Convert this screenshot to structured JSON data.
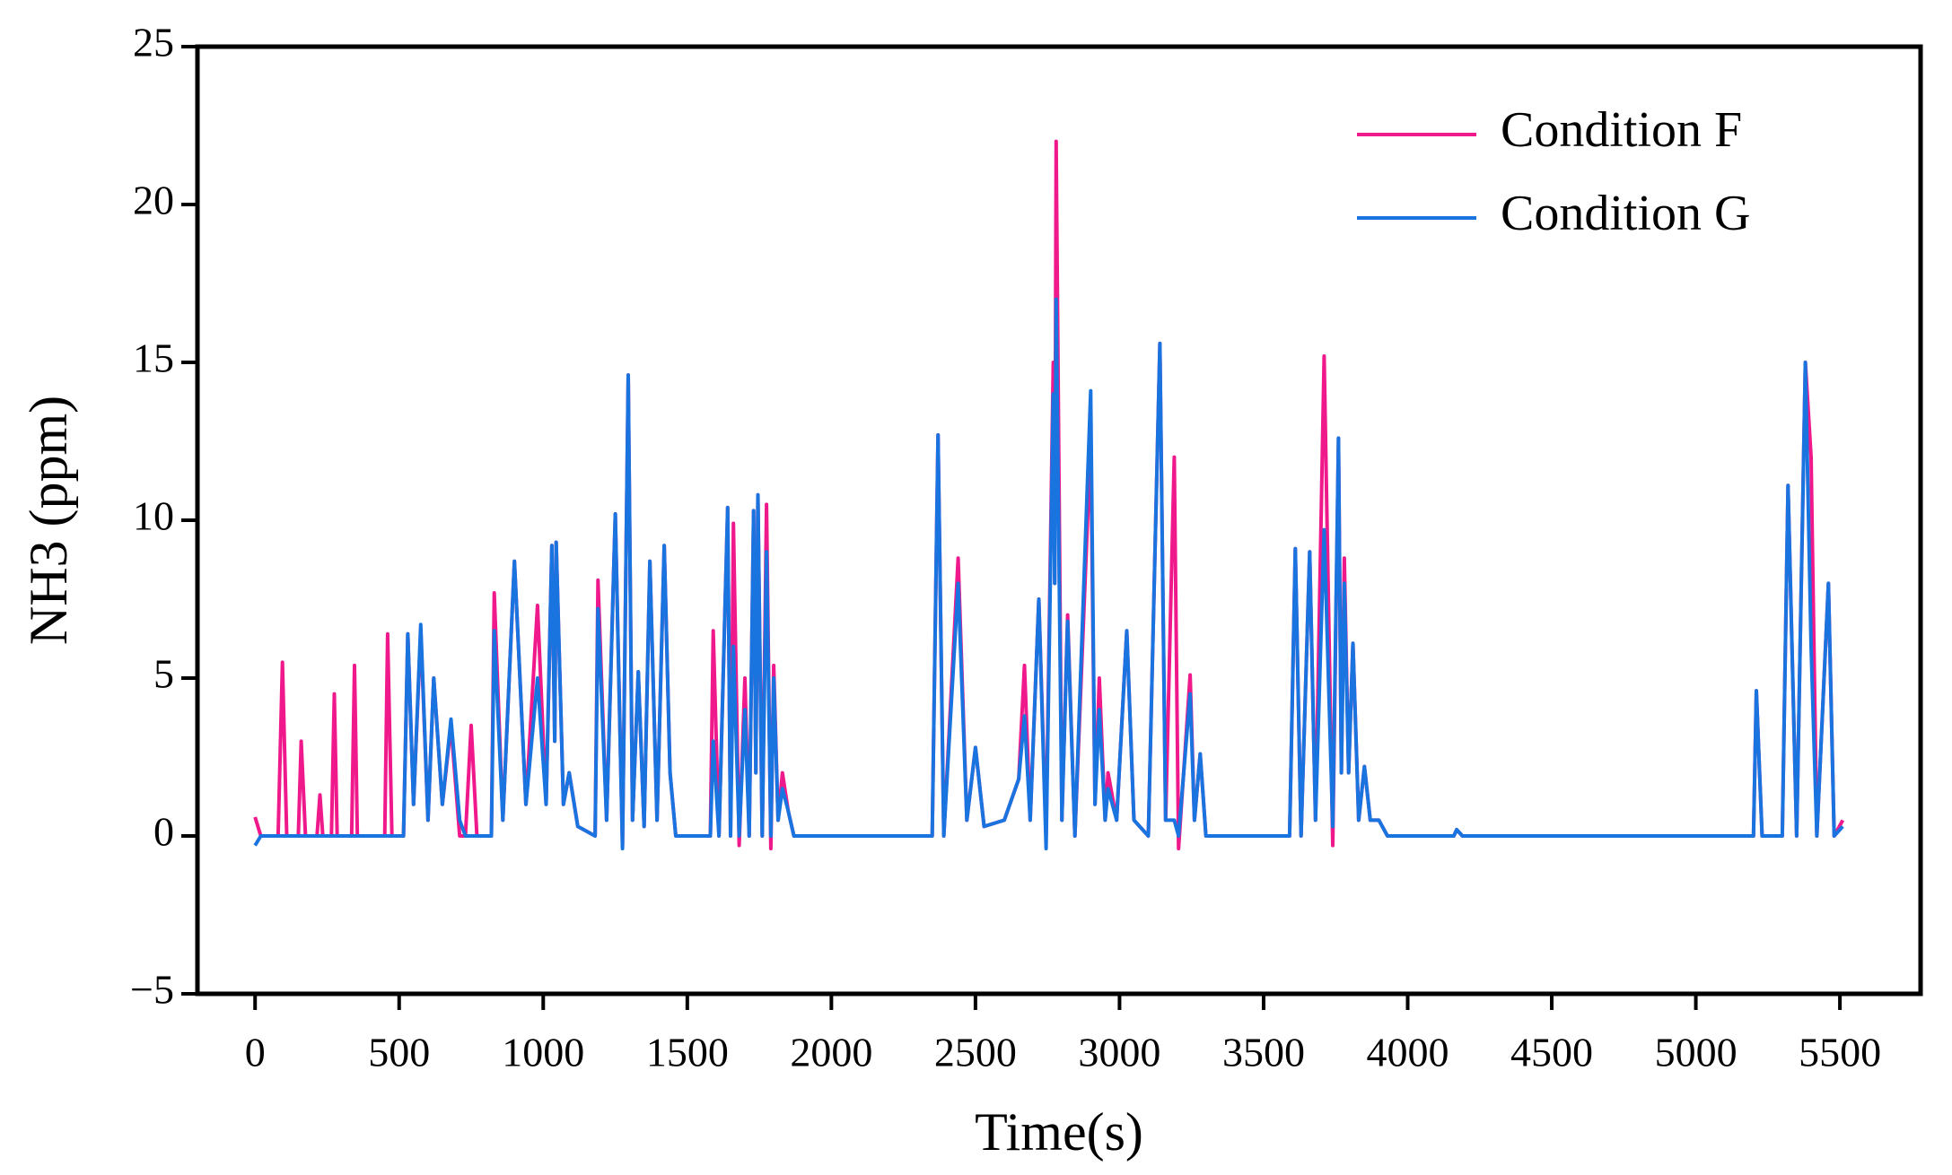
{
  "chart_data": {
    "type": "line",
    "xlabel": "Time(s)",
    "ylabel": "NH3 (ppm)",
    "xlim": [
      -200,
      5780
    ],
    "ylim": [
      -5,
      25
    ],
    "xticks": [
      0,
      500,
      1000,
      1500,
      2000,
      2500,
      3000,
      3500,
      4000,
      4500,
      5000,
      5500
    ],
    "yticks": [
      {
        "value": -5,
        "label": "−5"
      },
      0,
      5,
      10,
      15,
      20,
      25
    ],
    "legend": "upper right",
    "x": [
      0,
      20,
      80,
      95,
      110,
      150,
      160,
      175,
      215,
      225,
      235,
      265,
      275,
      285,
      335,
      345,
      355,
      450,
      460,
      475,
      515,
      530,
      550,
      575,
      600,
      620,
      650,
      680,
      710,
      730,
      750,
      770,
      820,
      830,
      860,
      900,
      940,
      980,
      1010,
      1030,
      1040,
      1045,
      1070,
      1090,
      1120,
      1180,
      1190,
      1220,
      1250,
      1275,
      1295,
      1310,
      1330,
      1350,
      1370,
      1395,
      1420,
      1440,
      1460,
      1580,
      1590,
      1610,
      1640,
      1650,
      1660,
      1680,
      1700,
      1715,
      1730,
      1738,
      1745,
      1760,
      1775,
      1790,
      1800,
      1815,
      1830,
      1850,
      1870,
      2350,
      2370,
      2390,
      2440,
      2470,
      2500,
      2530,
      2600,
      2650,
      2670,
      2690,
      2720,
      2745,
      2770,
      2775,
      2780,
      2800,
      2820,
      2845,
      2900,
      2915,
      2930,
      2950,
      2960,
      2990,
      3025,
      3050,
      3100,
      3140,
      3160,
      3190,
      3205,
      3245,
      3260,
      3280,
      3300,
      3590,
      3610,
      3630,
      3660,
      3680,
      3710,
      3740,
      3760,
      3770,
      3780,
      3795,
      3810,
      3830,
      3850,
      3870,
      3900,
      3930,
      4160,
      4170,
      4190,
      5200,
      5210,
      5230,
      5300,
      5320,
      5350,
      5380,
      5400,
      5420,
      5460,
      5480,
      5510
    ],
    "series": [
      {
        "name": "Condition F",
        "color": "#f0198c",
        "values": [
          0.6,
          0,
          0,
          5.5,
          0,
          0,
          3,
          0,
          0,
          1.3,
          0,
          0,
          4.5,
          0,
          0,
          5.4,
          0,
          0,
          6.4,
          0,
          0,
          6.4,
          1,
          6.5,
          0.5,
          5,
          1,
          3.5,
          0,
          0,
          3.5,
          0,
          0,
          7.7,
          0.5,
          8.7,
          1,
          7.3,
          1,
          9.2,
          3,
          9.3,
          1,
          2,
          0.3,
          0,
          8.1,
          0.5,
          10.2,
          -0.3,
          14.6,
          0.5,
          5.2,
          0.3,
          8.7,
          0.5,
          9.2,
          2,
          0,
          0,
          6.5,
          0,
          10.4,
          0,
          9.9,
          -0.3,
          5,
          0,
          10.3,
          2,
          10.8,
          0,
          10.5,
          -0.4,
          5.4,
          0.5,
          2,
          0.8,
          0,
          0,
          12.7,
          0,
          8.8,
          0.5,
          2.8,
          0.3,
          0.5,
          1.8,
          5.4,
          0.5,
          7.5,
          0,
          15,
          8,
          22,
          0.5,
          7,
          0,
          12.5,
          1,
          5,
          0.5,
          2,
          0.5,
          6.5,
          0.5,
          0,
          15.6,
          0.5,
          12,
          -0.4,
          5.1,
          0.5,
          2.6,
          0,
          0,
          9.1,
          0,
          9,
          0.5,
          15.2,
          -0.3,
          12.6,
          2,
          8.8,
          2,
          6.1,
          0.5,
          2.2,
          0.5,
          0.5,
          0,
          0,
          0.2,
          0,
          0,
          4.6,
          0,
          0,
          11.1,
          0,
          15,
          12,
          0,
          8,
          0,
          0.5
        ]
      },
      {
        "name": "Condition G",
        "color": "#1a74e0",
        "values": [
          -0.3,
          0,
          0,
          0,
          0,
          0,
          0,
          0,
          0,
          0,
          0,
          0,
          0,
          0,
          0,
          0,
          0,
          0,
          0,
          0,
          0,
          6.4,
          1,
          6.7,
          0.5,
          5,
          1,
          3.7,
          0.5,
          0,
          0,
          0,
          0,
          6.5,
          0.5,
          8.7,
          1,
          5,
          1,
          9.2,
          3,
          9.3,
          1,
          2,
          0.3,
          0,
          7.2,
          0.5,
          10.2,
          -0.4,
          14.6,
          0.5,
          5.2,
          0.3,
          8.7,
          0.5,
          9.2,
          2,
          0,
          0,
          3,
          0,
          10.4,
          0,
          6,
          0,
          4,
          0,
          10.3,
          2,
          10.8,
          0,
          9,
          0,
          5,
          0.5,
          1.5,
          0.8,
          0,
          0,
          12.7,
          0,
          8,
          0.5,
          2.8,
          0.3,
          0.5,
          1.8,
          3.8,
          0.5,
          7.5,
          -0.4,
          14,
          8,
          17,
          0.5,
          6.8,
          0,
          14.1,
          1,
          4,
          0.5,
          1.5,
          0.5,
          6.5,
          0.5,
          0,
          15.6,
          0.5,
          0.5,
          0,
          4.5,
          0.5,
          2.6,
          0,
          0,
          9.1,
          0,
          9,
          0.5,
          9.7,
          0.3,
          12.6,
          2,
          8,
          2,
          6.1,
          0.5,
          2.2,
          0.5,
          0.5,
          0,
          0,
          0.2,
          0,
          0,
          4.6,
          0,
          0,
          11.1,
          0,
          15,
          6,
          0,
          8,
          0,
          0.3
        ]
      }
    ]
  }
}
